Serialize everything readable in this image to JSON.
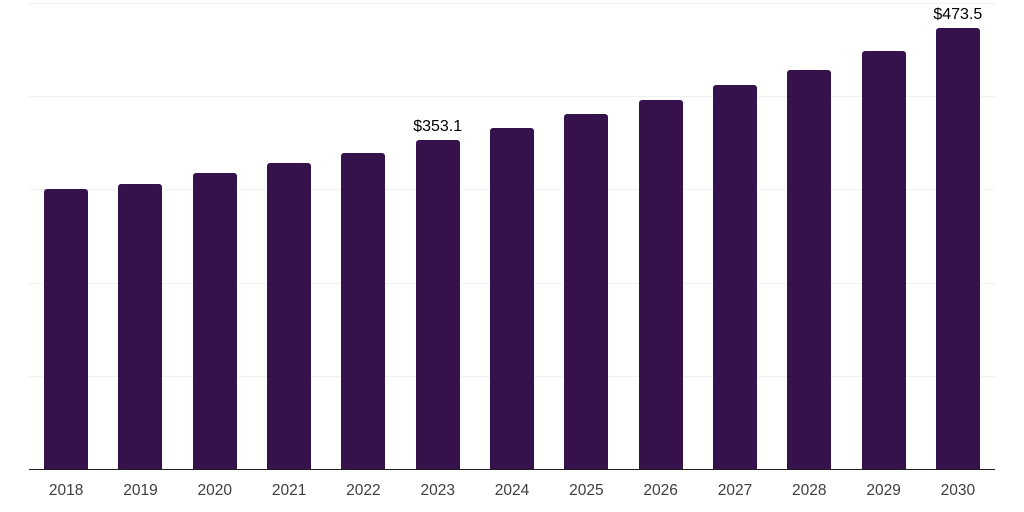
{
  "chart_data": {
    "type": "bar",
    "categories": [
      "2018",
      "2019",
      "2020",
      "2021",
      "2022",
      "2023",
      "2024",
      "2025",
      "2026",
      "2027",
      "2028",
      "2029",
      "2030"
    ],
    "values": [
      300.5,
      305.5,
      318.0,
      328.5,
      339.5,
      353.1,
      366.0,
      380.5,
      395.5,
      411.5,
      428.5,
      448.0,
      473.5
    ],
    "data_labels": {
      "2023": "$353.1",
      "2030": "$473.5"
    },
    "ylim": [
      0,
      500
    ],
    "grid_step": 100,
    "grid": "horizontal",
    "legend": false,
    "colors": {
      "bar": "#36124D",
      "axis": "#1F1F1F",
      "gridline": "#F1F1F1",
      "tick_label": "#3E3E3E",
      "data_label": "#000000",
      "background": "#FFFFFF"
    }
  }
}
